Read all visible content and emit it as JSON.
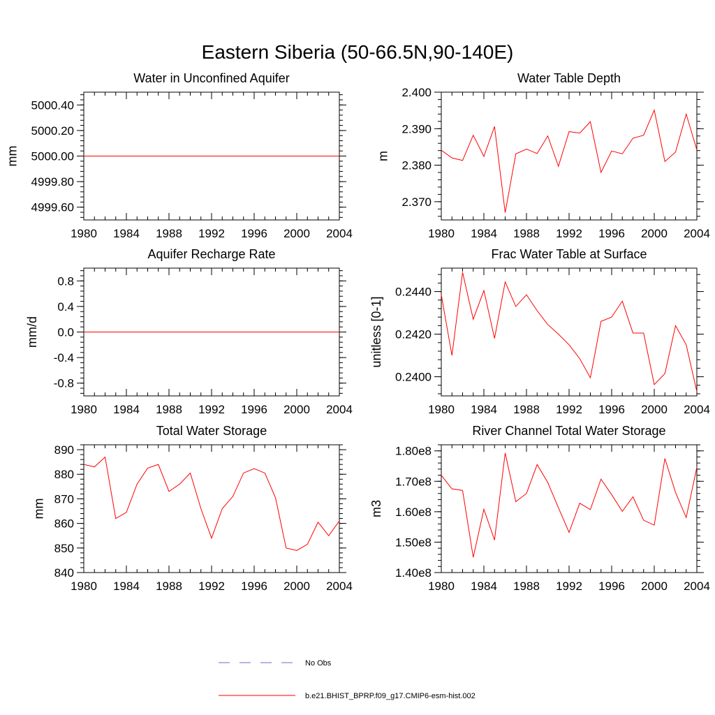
{
  "figure_title": "Eastern Siberia (50-66.5N,90-140E)",
  "legend": {
    "obs_label": "No Obs",
    "obs_color": "#6a6ad8",
    "model_label": "b.e21.BHIST_BPRP.f09_g17.CMIP6-esm-hist.002",
    "model_color": "#ff0000"
  },
  "chart_data": [
    {
      "type": "line",
      "title": "Water in Unconfined Aquifer",
      "ylabel": "mm",
      "xlim": [
        1980,
        2004
      ],
      "ylim": [
        4999.5,
        5000.5
      ],
      "x_ticks": [
        "1980",
        "1984",
        "1988",
        "1992",
        "1996",
        "2000",
        "2004"
      ],
      "y_ticks": [
        {
          "v": 5000.4,
          "label": "5000.40"
        },
        {
          "v": 5000.2,
          "label": "5000.20"
        },
        {
          "v": 5000.0,
          "label": "5000.00"
        },
        {
          "v": 4999.8,
          "label": "4999.80"
        },
        {
          "v": 4999.6,
          "label": "4999.60"
        }
      ],
      "y_minor_step": 0.04,
      "x": [
        1980,
        2004
      ],
      "values": [
        5000.0,
        5000.0
      ]
    },
    {
      "type": "line",
      "title": "Water Table Depth",
      "ylabel": "m",
      "xlim": [
        1980,
        2004
      ],
      "ylim": [
        2.365,
        2.4
      ],
      "x_ticks": [
        "1980",
        "1984",
        "1988",
        "1992",
        "1996",
        "2000",
        "2004"
      ],
      "y_ticks": [
        {
          "v": 2.4,
          "label": "2.400"
        },
        {
          "v": 2.39,
          "label": "2.390"
        },
        {
          "v": 2.38,
          "label": "2.380"
        },
        {
          "v": 2.37,
          "label": "2.370"
        }
      ],
      "y_minor_step": 0.002,
      "x": [
        1980,
        1981,
        1982,
        1983,
        1984,
        1985,
        1986,
        1987,
        1988,
        1989,
        1990,
        1991,
        1992,
        1993,
        1994,
        1995,
        1996,
        1997,
        1998,
        1999,
        2000,
        2001,
        2002,
        2003,
        2004
      ],
      "values": [
        2.3841,
        2.382,
        2.3813,
        2.3882,
        2.3824,
        2.3906,
        2.367,
        2.3831,
        2.3844,
        2.3832,
        2.388,
        2.3797,
        2.3892,
        2.3888,
        2.3919,
        2.378,
        2.3839,
        2.3831,
        2.3874,
        2.3882,
        2.3951,
        2.381,
        2.3836,
        2.394,
        2.3842
      ]
    },
    {
      "type": "line",
      "title": "Aquifer Recharge Rate",
      "ylabel": "mm/d",
      "xlim": [
        1980,
        2004
      ],
      "ylim": [
        -1.0,
        1.0
      ],
      "x_ticks": [
        "1980",
        "1984",
        "1988",
        "1992",
        "1996",
        "2000",
        "2004"
      ],
      "y_ticks": [
        {
          "v": 0.8,
          "label": "0.8"
        },
        {
          "v": 0.4,
          "label": "0.4"
        },
        {
          "v": 0.0,
          "label": "0.0"
        },
        {
          "v": -0.4,
          "label": "-0.4"
        },
        {
          "v": -0.8,
          "label": "-0.8"
        }
      ],
      "y_minor_step": 0.08,
      "x": [
        1980,
        2004
      ],
      "values": [
        0.0,
        0.0
      ]
    },
    {
      "type": "line",
      "title": "Frac Water Table at Surface",
      "ylabel": "unitless [0-1]",
      "xlim": [
        1980,
        2004
      ],
      "ylim": [
        0.2391,
        0.2451
      ],
      "x_ticks": [
        "1980",
        "1984",
        "1988",
        "1992",
        "1996",
        "2000",
        "2004"
      ],
      "y_ticks": [
        {
          "v": 0.244,
          "label": "0.2440"
        },
        {
          "v": 0.242,
          "label": "0.2420"
        },
        {
          "v": 0.24,
          "label": "0.2400"
        }
      ],
      "y_minor_step": 0.0004,
      "x": [
        1980,
        1981,
        1982,
        1983,
        1984,
        1985,
        1986,
        1987,
        1988,
        1989,
        1990,
        1991,
        1992,
        1993,
        1994,
        1995,
        1996,
        1997,
        1998,
        1999,
        2000,
        2001,
        2002,
        2003,
        2004
      ],
      "values": [
        0.24385,
        0.241,
        0.2449,
        0.2427,
        0.24405,
        0.2418,
        0.24445,
        0.2433,
        0.24385,
        0.2431,
        0.24245,
        0.242,
        0.2415,
        0.24085,
        0.23995,
        0.2426,
        0.2428,
        0.24355,
        0.24205,
        0.24205,
        0.23963,
        0.24015,
        0.2424,
        0.2415,
        0.2393
      ]
    },
    {
      "type": "line",
      "title": "Total Water Storage",
      "ylabel": "mm",
      "xlim": [
        1980,
        2004
      ],
      "ylim": [
        840,
        892
      ],
      "x_ticks": [
        "1980",
        "1984",
        "1988",
        "1992",
        "1996",
        "2000",
        "2004"
      ],
      "y_ticks": [
        {
          "v": 890,
          "label": "890"
        },
        {
          "v": 880,
          "label": "880"
        },
        {
          "v": 870,
          "label": "870"
        },
        {
          "v": 860,
          "label": "860"
        },
        {
          "v": 850,
          "label": "850"
        },
        {
          "v": 840,
          "label": "840"
        }
      ],
      "y_minor_step": 2,
      "x": [
        1980,
        1981,
        1982,
        1983,
        1984,
        1985,
        1986,
        1987,
        1988,
        1989,
        1990,
        1991,
        1992,
        1993,
        1994,
        1995,
        1996,
        1997,
        1998,
        1999,
        2000,
        2001,
        2002,
        2003,
        2004
      ],
      "values": [
        884,
        883,
        887,
        862,
        864.5,
        876,
        882.5,
        884,
        873,
        876,
        880.5,
        866,
        854,
        866,
        871,
        880.5,
        882.3,
        880.5,
        870.5,
        850,
        849,
        851.5,
        860.5,
        855,
        861
      ]
    },
    {
      "type": "line",
      "title": "River Channel Total Water Storage",
      "ylabel": "m3",
      "xlim": [
        1980,
        2004
      ],
      "ylim": [
        140000000.0,
        182000000.0
      ],
      "x_ticks": [
        "1980",
        "1984",
        "1988",
        "1992",
        "1996",
        "2000",
        "2004"
      ],
      "y_ticks": [
        {
          "v": 180000000.0,
          "label": "1.80e8"
        },
        {
          "v": 170000000.0,
          "label": "1.70e8"
        },
        {
          "v": 160000000.0,
          "label": "1.60e8"
        },
        {
          "v": 150000000.0,
          "label": "1.50e8"
        },
        {
          "v": 140000000.0,
          "label": "1.40e8"
        }
      ],
      "y_minor_step": 2000000,
      "x": [
        1980,
        1981,
        1982,
        1983,
        1984,
        1985,
        1986,
        1987,
        1988,
        1989,
        1990,
        1991,
        1992,
        1993,
        1994,
        1995,
        1996,
        1997,
        1998,
        1999,
        2000,
        2001,
        2002,
        2003,
        2004
      ],
      "values": [
        172000000,
        167500000,
        167000000,
        145000000,
        160800000,
        150700000,
        179300000,
        163300000,
        166000000,
        175500000,
        169600000,
        161300000,
        153200000,
        162800000,
        160700000,
        170700000,
        165600000,
        160100000,
        164900000,
        157200000,
        155600000,
        177500000,
        166300000,
        158100000,
        174600000
      ]
    }
  ]
}
